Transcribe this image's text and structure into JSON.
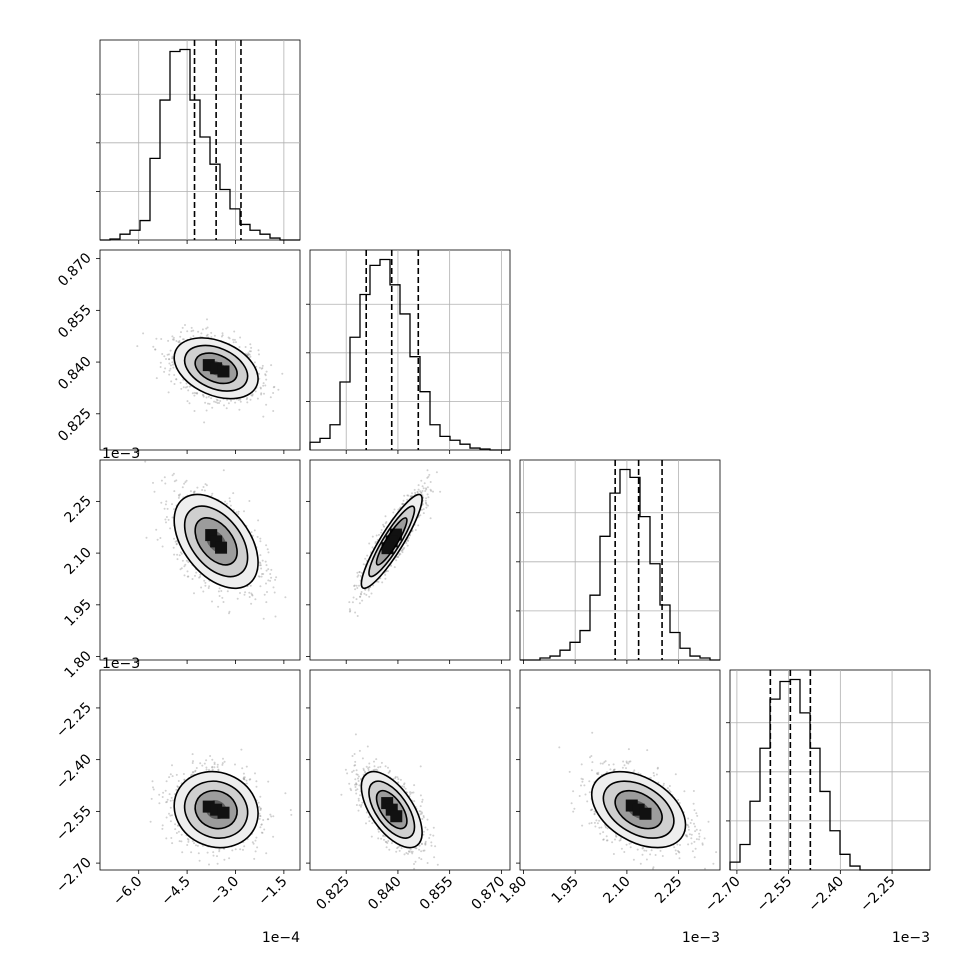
{
  "chart_data": {
    "type": "corner",
    "title": "",
    "parameters": [
      {
        "range": [
          -0.00072,
          -0.0001
        ],
        "ticks": [
          -6.0,
          -4.5,
          -3.0,
          -1.5
        ],
        "tick_labels": [
          "−6.0",
          "−4.5",
          "−3.0",
          "−1.5"
        ],
        "scale": 0.0001,
        "offset_text": "1e−4",
        "quantiles": [
          -0.000427,
          -0.00036,
          -0.000283
        ],
        "hist": [
          0,
          0.005,
          0.03,
          0.05,
          0.1,
          0.42,
          0.72,
          0.97,
          0.98,
          0.72,
          0.53,
          0.39,
          0.26,
          0.16,
          0.08,
          0.05,
          0.03,
          0.01,
          0,
          0
        ]
      },
      {
        "range": [
          0.8145,
          0.8725
        ],
        "ticks": [
          0.825,
          0.84,
          0.855,
          0.87
        ],
        "tick_labels": [
          "0.825",
          "0.840",
          "0.855",
          "0.870"
        ],
        "scale": 1,
        "offset_text": "",
        "quantiles": [
          0.8308,
          0.8382,
          0.8459
        ],
        "hist": [
          0.04,
          0.06,
          0.13,
          0.35,
          0.58,
          0.8,
          0.95,
          0.98,
          0.85,
          0.7,
          0.48,
          0.3,
          0.13,
          0.07,
          0.05,
          0.03,
          0.01,
          0.005,
          0,
          0
        ]
      },
      {
        "range": [
          0.00179,
          0.00237
        ],
        "ticks": [
          1.8,
          1.95,
          2.1,
          2.25
        ],
        "tick_labels": [
          "1.80",
          "1.95",
          "2.10",
          "2.25"
        ],
        "scale": 0.001,
        "offset_text": "1e−3",
        "quantiles": [
          0.002066,
          0.002134,
          0.002202
        ],
        "hist": [
          0,
          0,
          0.01,
          0.02,
          0.05,
          0.09,
          0.15,
          0.33,
          0.63,
          0.85,
          0.97,
          0.93,
          0.73,
          0.49,
          0.28,
          0.14,
          0.06,
          0.02,
          0.01,
          0
        ]
      },
      {
        "range": [
          -0.00272,
          -0.00214
        ],
        "ticks": [
          -2.7,
          -2.55,
          -2.4,
          -2.25
        ],
        "tick_labels": [
          "−2.70",
          "−2.55",
          "−2.40",
          "−2.25"
        ],
        "scale": 0.001,
        "offset_text": "1e−3",
        "quantiles": [
          -0.002603,
          -0.002545,
          -0.002487
        ],
        "hist": [
          0.04,
          0.13,
          0.35,
          0.62,
          0.87,
          0.96,
          0.97,
          0.8,
          0.62,
          0.4,
          0.2,
          0.08,
          0.02,
          0,
          0,
          0,
          0,
          0,
          0,
          0
        ]
      }
    ],
    "pairs": [
      {
        "row": 1,
        "col": 0,
        "center": [
          -0.00036,
          0.8382
        ],
        "sd": [
          6.5e-05,
          0.0044
        ],
        "corr": -0.35
      },
      {
        "row": 2,
        "col": 0,
        "center": [
          -0.00036,
          0.002134
        ],
        "sd": [
          6.5e-05,
          6.8e-05
        ],
        "corr": -0.45
      },
      {
        "row": 2,
        "col": 1,
        "center": [
          0.8382,
          0.002134
        ],
        "sd": [
          0.0044,
          6.8e-05
        ],
        "corr": 0.9
      },
      {
        "row": 3,
        "col": 0,
        "center": [
          -0.00036,
          -0.002545
        ],
        "sd": [
          6.5e-05,
          5.5e-05
        ],
        "corr": -0.1
      },
      {
        "row": 3,
        "col": 1,
        "center": [
          0.8382,
          -0.002545
        ],
        "sd": [
          0.0044,
          5.5e-05
        ],
        "corr": -0.6
      },
      {
        "row": 3,
        "col": 2,
        "center": [
          0.002134,
          -0.002545
        ],
        "sd": [
          6.8e-05,
          5.5e-05
        ],
        "corr": -0.4
      }
    ],
    "contour_levels_sigma": [
      0.5,
      1.0,
      1.5,
      2.0
    ],
    "grid": true,
    "xlabels": [
      "",
      "",
      "",
      ""
    ],
    "ylabels": [
      "",
      "",
      "",
      ""
    ]
  }
}
